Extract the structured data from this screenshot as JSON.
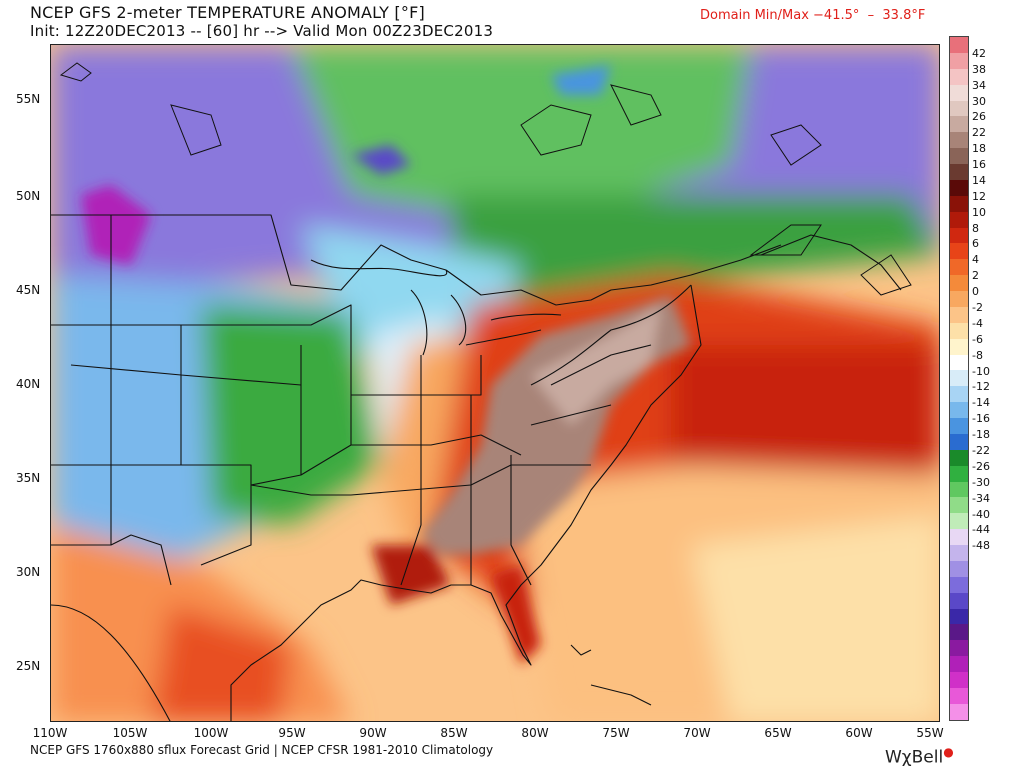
{
  "header": {
    "title": "NCEP GFS 2-meter TEMPERATURE ANOMALY [°F]",
    "init_line": "Init: 12Z20DEC2013 -- [60] hr --> Valid Mon 00Z23DEC2013",
    "domain_minmax": "Domain Min/Max −41.5°  –  33.8°F"
  },
  "footer": {
    "credit": "NCEP GFS 1760x880 sflux Forecast Grid | NCEP CFSR 1981-2010 Climatology",
    "brand": "WχBell"
  },
  "map": {
    "lat_labels": [
      "55N",
      "50N",
      "45N",
      "40N",
      "35N",
      "30N",
      "25N"
    ],
    "lon_labels": [
      "110W",
      "105W",
      "100W",
      "95W",
      "90W",
      "85W",
      "80W",
      "75W",
      "70W",
      "65W",
      "60W",
      "55W"
    ]
  },
  "colorbar": {
    "labels": [
      "42",
      "38",
      "34",
      "30",
      "26",
      "22",
      "18",
      "16",
      "14",
      "12",
      "10",
      "8",
      "6",
      "4",
      "2",
      "0",
      "-2",
      "-4",
      "-6",
      "-8",
      "-10",
      "-12",
      "-14",
      "-16",
      "-18",
      "-22",
      "-26",
      "-30",
      "-34",
      "-40",
      "-44",
      "-48"
    ],
    "colors": [
      "#e8707a",
      "#f0a0a4",
      "#f4c4c4",
      "#f0dcd8",
      "#e0c8c0",
      "#c8aaa0",
      "#a88478",
      "#8a6458",
      "#6a3a30",
      "#5a0a08",
      "#8a1208",
      "#b01a0a",
      "#d02810",
      "#e84418",
      "#f06828",
      "#f48a3a",
      "#f8a860",
      "#fcc488",
      "#fde0a8",
      "#fff4cc",
      "#ffffff",
      "#d8ecf8",
      "#a8d4f4",
      "#78b8ec",
      "#4a94e0",
      "#2a6cd0",
      "#1a8a2a",
      "#30b040",
      "#60c860",
      "#90dc88",
      "#c0ecb8",
      "#e8d8f4",
      "#c4b4ec",
      "#a090e4",
      "#7c6cdc",
      "#5a48c8",
      "#3a28a8",
      "#5a1888",
      "#8a1aa0",
      "#b020b8",
      "#d030c8",
      "#e858d8",
      "#f490e8"
    ]
  }
}
